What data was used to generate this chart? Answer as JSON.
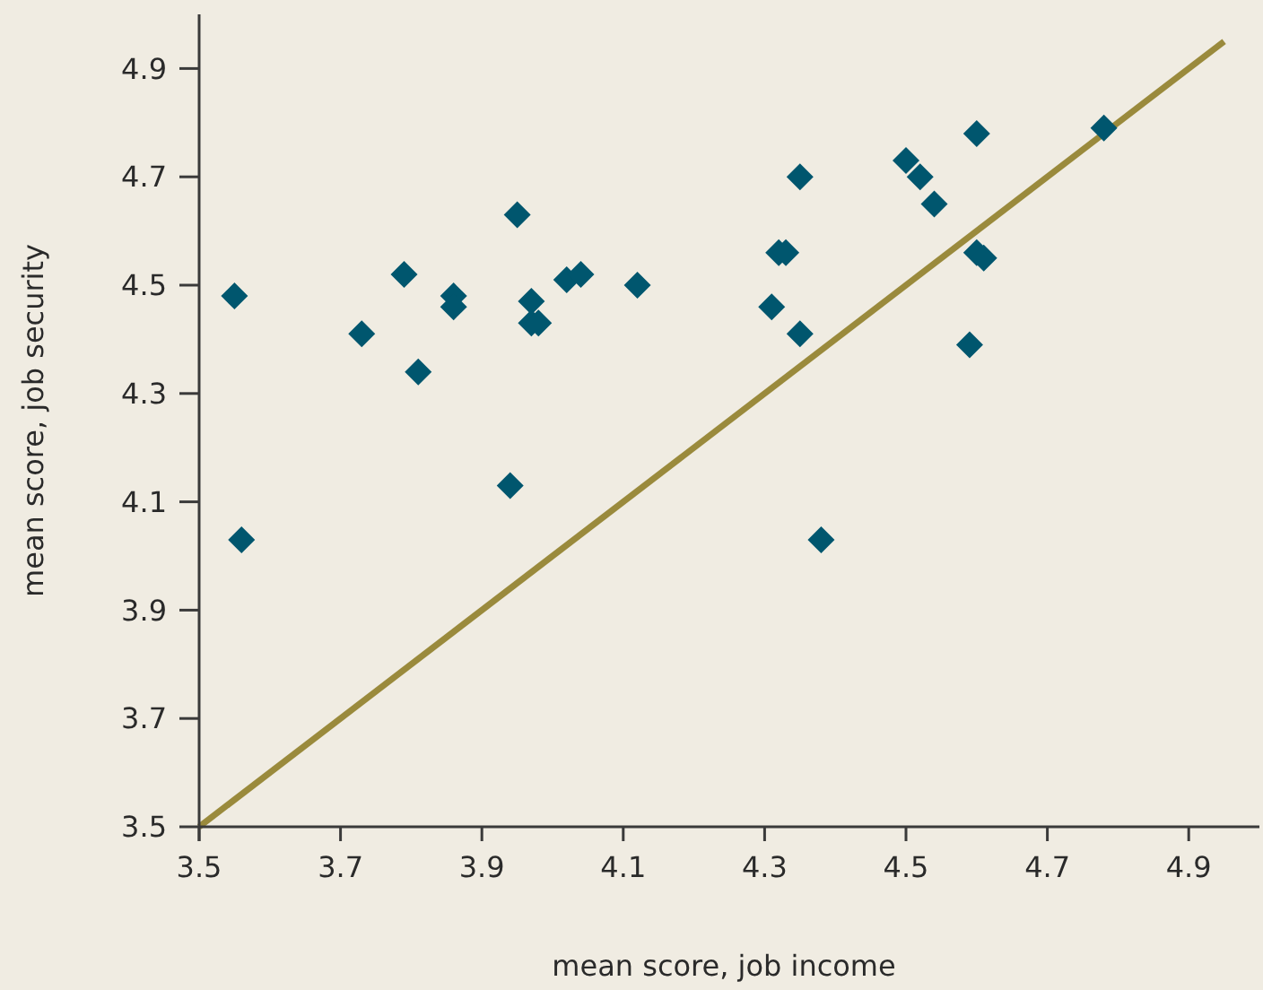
{
  "chart_data": {
    "type": "scatter",
    "xlabel": "mean score, job income",
    "ylabel": "mean score, job security",
    "xlim": [
      3.5,
      5.0
    ],
    "ylim": [
      3.5,
      5.0
    ],
    "xticks": [
      3.5,
      3.7,
      3.9,
      4.1,
      4.3,
      4.5,
      4.7,
      4.9
    ],
    "yticks": [
      3.5,
      3.7,
      3.9,
      4.1,
      4.3,
      4.5,
      4.7,
      4.9
    ],
    "grid": false,
    "marker": "diamond",
    "series": [
      {
        "type": "line",
        "color": "#9a8a3c",
        "x": [
          3.5,
          4.95
        ],
        "values": [
          3.5,
          4.95
        ],
        "marker": "none",
        "line_style": "solid"
      },
      {
        "color": "#00566e",
        "x": [
          3.55,
          3.56,
          3.73,
          3.79,
          3.81,
          3.86,
          3.86,
          3.95,
          3.94,
          3.97,
          3.97,
          3.98,
          4.02,
          4.04,
          4.12,
          4.31,
          4.32,
          4.33,
          4.35,
          4.35,
          4.38,
          4.5,
          4.52,
          4.54,
          4.59,
          4.6,
          4.6,
          4.61,
          4.78
        ],
        "values": [
          4.48,
          4.03,
          4.41,
          4.52,
          4.34,
          4.48,
          4.46,
          4.63,
          4.13,
          4.47,
          4.43,
          4.43,
          4.51,
          4.52,
          4.5,
          4.46,
          4.56,
          4.56,
          4.41,
          4.7,
          4.03,
          4.73,
          4.7,
          4.65,
          4.39,
          4.78,
          4.56,
          4.55,
          4.79
        ]
      }
    ]
  }
}
